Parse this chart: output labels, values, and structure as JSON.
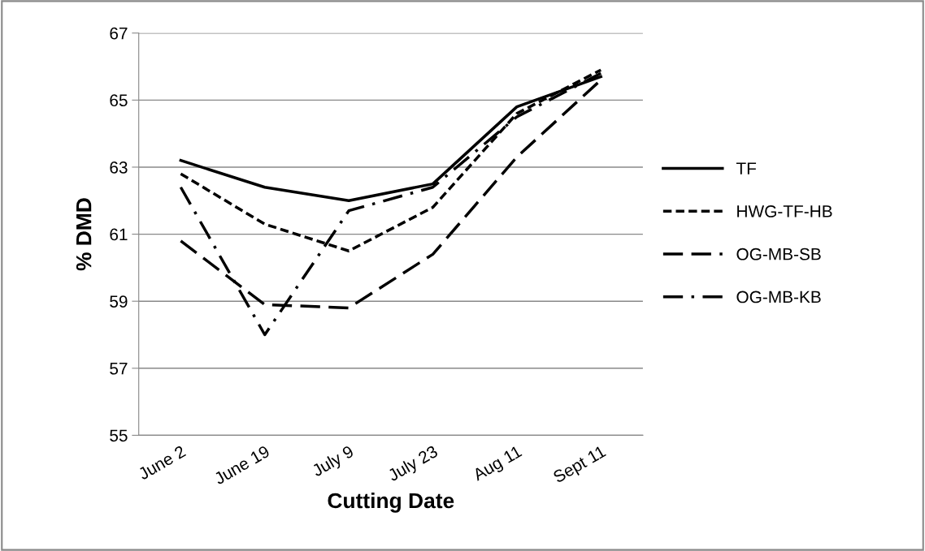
{
  "chart_data": {
    "type": "line",
    "xlabel": "Cutting Date",
    "ylabel": "% DMD",
    "categories": [
      "June 2",
      "June 19",
      "July 9",
      "July 23",
      "Aug 11",
      "Sept 11"
    ],
    "series": [
      {
        "name": "TF",
        "color": "#000000",
        "line_style": "solid",
        "values": [
          63.2,
          62.4,
          62.0,
          62.5,
          64.8,
          65.7
        ]
      },
      {
        "name": "HWG-TF-HB",
        "color": "#000000",
        "line_style": "dashed",
        "values": [
          62.8,
          61.3,
          60.5,
          61.8,
          64.6,
          65.9
        ]
      },
      {
        "name": "OG-MB-SB",
        "color": "#000000",
        "line_style": "long_dashed",
        "values": [
          60.8,
          58.9,
          58.8,
          60.4,
          63.3,
          65.6
        ]
      },
      {
        "name": "OG-MB-KB",
        "color": "#000000",
        "line_style": "dash_dot",
        "values": [
          62.4,
          58.0,
          61.7,
          62.4,
          64.5,
          65.8
        ]
      }
    ],
    "ylim": [
      55,
      67
    ],
    "yticks": [
      55,
      57,
      59,
      61,
      63,
      65,
      67
    ],
    "grid": "y",
    "legend": "right",
    "marker": "none"
  }
}
